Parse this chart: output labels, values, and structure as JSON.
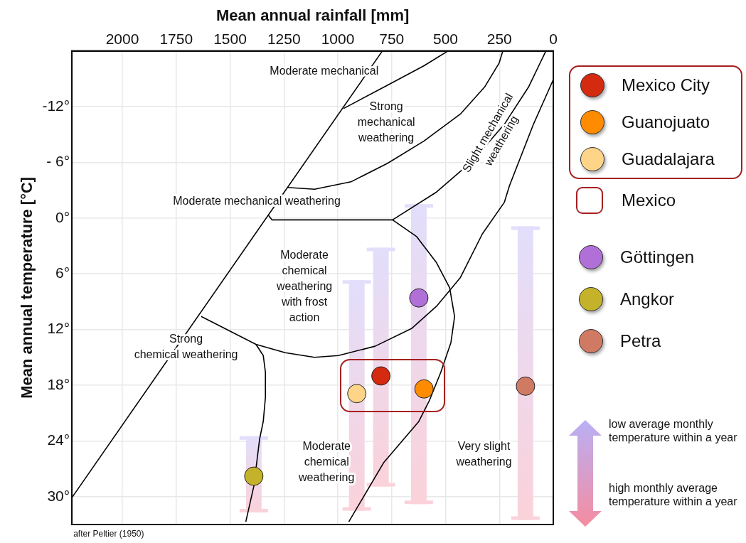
{
  "chart_data": {
    "type": "scatter",
    "xlabel": "Mean annual rainfall [mm]",
    "ylabel": "Mean annual temperature [°C]",
    "xlim": [
      2234,
      0
    ],
    "xticks": [
      2000,
      1750,
      1500,
      1250,
      1000,
      750,
      500,
      250,
      0
    ],
    "ylim": [
      33,
      -18
    ],
    "yticks": [
      {
        "value": -12,
        "label": "-12°"
      },
      {
        "value": -6,
        "label": "- 6°"
      },
      {
        "value": 0,
        "label": "0°"
      },
      {
        "value": 6,
        "label": "6°"
      },
      {
        "value": 12,
        "label": "12°"
      },
      {
        "value": 18,
        "label": "18°"
      },
      {
        "value": 24,
        "label": "24°"
      },
      {
        "value": 30,
        "label": "30°"
      }
    ],
    "grid": true,
    "legend": "right",
    "marker": "circle",
    "series": [
      {
        "name": "Mexico City",
        "color": "#d42a10",
        "x": [
          800
        ],
        "values": [
          17.0
        ],
        "errors": [
          [
            3.2,
            28.9
          ]
        ]
      },
      {
        "name": "Guanojuato",
        "color": "#ff8c00",
        "x": [
          600
        ],
        "values": [
          18.4
        ]
      },
      {
        "name": "Guadalajara",
        "color": "#fdd488",
        "x": [
          912
        ],
        "values": [
          18.9
        ],
        "errors": [
          [
            6.7,
            31.5
          ]
        ]
      },
      {
        "name": "Göttingen",
        "color": "#b070d8",
        "x": [
          624
        ],
        "values": [
          8.6
        ],
        "errors": [
          [
            -1.5,
            30.8
          ]
        ]
      },
      {
        "name": "Angkor",
        "color": "#c4b22a",
        "x": [
          1390
        ],
        "values": [
          27.8
        ],
        "errors": [
          [
            23.5,
            31.7
          ]
        ]
      },
      {
        "name": "Petra",
        "color": "#d07a64",
        "x": [
          129
        ],
        "values": [
          18.1
        ],
        "errors": [
          [
            0.9,
            32.5
          ]
        ]
      },
      {
        "type": "line",
        "color": "#000000",
        "marker": "none",
        "x": [
          2234,
          793
        ],
        "values": [
          30.1,
          -18.0
        ]
      },
      {
        "type": "line",
        "color": "#000000",
        "marker": "none",
        "x": [
          973,
          770,
          600,
          488
        ],
        "values": [
          -11.8,
          -14.3,
          -16.4,
          -18.0
        ]
      },
      {
        "type": "line",
        "color": "#000000",
        "marker": "none",
        "x": [
          1234,
          1108,
          939,
          769,
          600,
          431,
          319,
          251,
          234
        ],
        "values": [
          -3.3,
          -3.1,
          -3.9,
          -5.9,
          -8.3,
          -11.2,
          -14.1,
          -16.7,
          -18.0
        ]
      },
      {
        "type": "line",
        "color": "#000000",
        "marker": "none",
        "x": [
          34,
          115,
          227,
          373,
          542,
          746
        ],
        "values": [
          -18.0,
          -14.1,
          -10.1,
          -6.2,
          -2.8,
          0.2
        ]
      },
      {
        "type": "line",
        "color": "#000000",
        "marker": "none",
        "x": [
          0,
          92,
          203,
          227,
          329,
          431,
          542,
          658,
          827,
          997,
          1108,
          1244,
          1380,
          1634
        ],
        "values": [
          -14.9,
          -10.1,
          -3.5,
          -1.7,
          1.7,
          6.4,
          9.5,
          11.9,
          13.8,
          14.8,
          15.0,
          14.5,
          13.6,
          10.6
        ]
      },
      {
        "type": "line",
        "color": "#000000",
        "marker": "none",
        "x": [
          746,
          634,
          542,
          481,
          458,
          475,
          522,
          576,
          624,
          786,
          949
        ],
        "values": [
          0.2,
          2.0,
          4.8,
          7.5,
          10.6,
          13.4,
          16.6,
          19.7,
          21.9,
          26.3,
          32.7
        ]
      },
      {
        "type": "line",
        "color": "#000000",
        "marker": "none",
        "x": [
          1322,
          1305,
          746
        ],
        "values": [
          -0.3,
          0.2,
          0.2
        ]
      },
      {
        "type": "line",
        "color": "#000000",
        "marker": "none",
        "x": [
          1380,
          1346,
          1336,
          1336,
          1346,
          1363,
          1390,
          1427
        ],
        "values": [
          13.6,
          14.8,
          16.6,
          19.3,
          21.9,
          23.8,
          28.9,
          32.7
        ]
      }
    ],
    "annotations": [
      "Moderate mechanical",
      "Strong\nmechanical\nweathering",
      "Slight mechanical\nweathering",
      "Moderate mechanical weathering",
      "Moderate\nchemical\nweathering\nwith frost\naction",
      "Strong\nchemical weathering",
      "Moderate\nchemical\nweathering",
      "Very slight\nweathering",
      "Mexico",
      "low average monthly temperature within a year",
      "high monthly average temperature within a year",
      "after Peltier (1950)"
    ]
  }
}
